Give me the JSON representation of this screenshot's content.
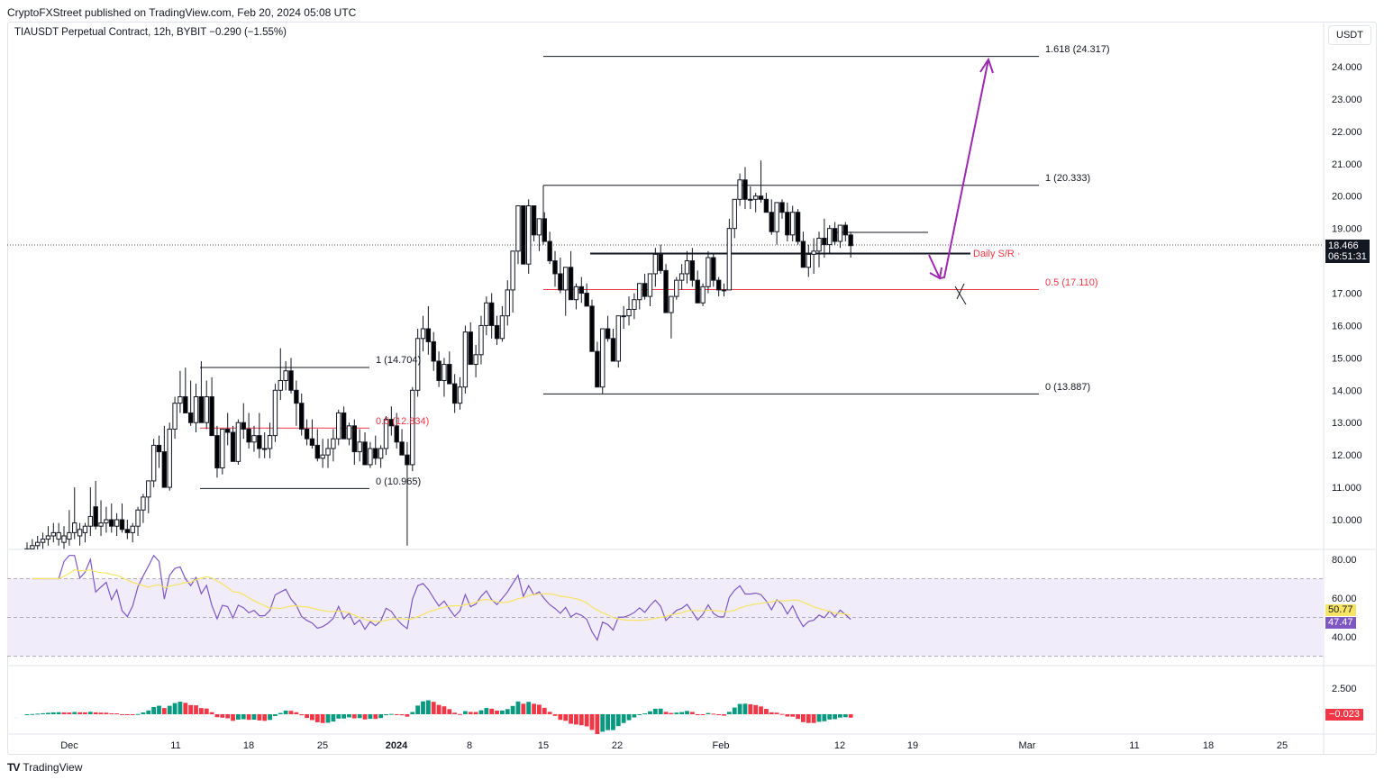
{
  "header": {
    "published": "CryptoFXStreet published on TradingView.com, Feb 20, 2024 05:08 UTC",
    "symbol_line": "TIAUSDT Perpetual Contract, 12h, BYBIT  −0.290 (−1.55%)",
    "currency": "USDT"
  },
  "price_axis": {
    "ticks": [
      "24.000",
      "23.000",
      "22.000",
      "21.000",
      "20.000",
      "19.000",
      "17.000",
      "16.000",
      "15.000",
      "14.000",
      "13.000",
      "12.000",
      "11.000",
      "10.000"
    ],
    "last_price": "18.466",
    "countdown": "06:51:31"
  },
  "rsi_axis": {
    "ticks": [
      "80.00",
      "60.00",
      "40.00"
    ],
    "rsi_value": "47.47",
    "ma_value": "50.77"
  },
  "macd_axis": {
    "ticks": [
      "2.500"
    ],
    "value": "−0.023"
  },
  "time_axis": {
    "labels": [
      "Dec",
      "11",
      "18",
      "25",
      "2024",
      "8",
      "15",
      "22",
      "Feb",
      "12",
      "19",
      "Mar",
      "11",
      "18",
      "25"
    ]
  },
  "annotations": {
    "fib_small": {
      "l1": "1 (14.704)",
      "l05": "0.5 (12.834)",
      "l0": "0 (10.965)"
    },
    "fib_big": {
      "l1618": "1.618 (24.317)",
      "l1": "1 (20.333)",
      "l05": "0.5 (17.110)",
      "l0": "0 (13.887)"
    },
    "sr_label": "Daily S/R"
  },
  "footer": {
    "brand": "TradingView"
  },
  "colors": {
    "up_fill": "#ffffff",
    "down_fill": "#000000",
    "fib_red": "#f23645",
    "arrow": "#9c27b0",
    "rsi_line": "#7e57c2",
    "rsi_ma": "#f7e463",
    "rsi_band": "#f0ecf9",
    "macd_up": "#089981",
    "macd_down": "#f23645"
  },
  "chart_data": {
    "type": "candlestick",
    "title": "TIAUSDT Perpetual Contract, 12h, BYBIT",
    "ylabel": "USDT",
    "ylim": [
      9.3,
      25.0
    ],
    "x_start": "2023-11-26",
    "interval": "12h",
    "ohlc": [
      [
        9.0,
        9.3,
        8.8,
        9.1
      ],
      [
        9.1,
        9.4,
        8.9,
        9.2
      ],
      [
        9.2,
        9.5,
        9.0,
        9.3
      ],
      [
        9.3,
        9.6,
        9.1,
        9.4
      ],
      [
        9.4,
        9.8,
        9.2,
        9.5
      ],
      [
        9.5,
        9.9,
        9.3,
        9.6
      ],
      [
        9.4,
        9.9,
        9.2,
        9.6
      ],
      [
        9.3,
        9.8,
        9.1,
        9.5
      ],
      [
        9.4,
        10.3,
        9.2,
        9.6
      ],
      [
        9.6,
        11.0,
        9.4,
        9.9
      ],
      [
        9.5,
        9.9,
        9.2,
        9.7
      ],
      [
        9.6,
        9.9,
        9.3,
        9.8
      ],
      [
        9.8,
        11.0,
        9.5,
        10.1
      ],
      [
        10.4,
        11.2,
        9.7,
        9.8
      ],
      [
        9.8,
        10.6,
        9.5,
        9.9
      ],
      [
        9.9,
        10.4,
        9.6,
        10.0
      ],
      [
        10.0,
        10.5,
        9.6,
        9.8
      ],
      [
        9.8,
        10.2,
        9.5,
        10.0
      ],
      [
        10.0,
        10.5,
        9.6,
        9.7
      ],
      [
        9.7,
        10.0,
        9.4,
        9.6
      ],
      [
        9.6,
        9.9,
        9.3,
        9.8
      ],
      [
        9.8,
        10.4,
        9.5,
        10.3
      ],
      [
        10.3,
        10.8,
        9.9,
        10.7
      ],
      [
        10.7,
        11.2,
        10.2,
        11.2
      ],
      [
        11.2,
        12.5,
        11.0,
        12.3
      ],
      [
        12.3,
        12.6,
        11.6,
        12.1
      ],
      [
        12.1,
        12.9,
        11.0,
        11.0
      ],
      [
        11.0,
        13.0,
        10.9,
        12.8
      ],
      [
        12.8,
        13.8,
        12.5,
        13.6
      ],
      [
        13.6,
        14.6,
        13.3,
        13.8
      ],
      [
        13.8,
        14.7,
        13.4,
        13.3
      ],
      [
        13.3,
        14.3,
        12.9,
        13.0
      ],
      [
        13.0,
        14.2,
        12.7,
        13.8
      ],
      [
        13.8,
        14.9,
        13.0,
        13.0
      ],
      [
        13.0,
        14.3,
        12.8,
        13.8
      ],
      [
        13.8,
        14.4,
        12.6,
        12.6
      ],
      [
        12.6,
        12.9,
        11.3,
        11.6
      ],
      [
        11.6,
        12.8,
        11.4,
        12.8
      ],
      [
        12.8,
        13.3,
        12.3,
        12.7
      ],
      [
        12.7,
        12.9,
        11.8,
        11.8
      ],
      [
        11.8,
        13.1,
        11.7,
        13.0
      ],
      [
        13.0,
        13.6,
        12.5,
        12.8
      ],
      [
        12.8,
        13.3,
        12.2,
        12.4
      ],
      [
        12.4,
        12.9,
        12.1,
        12.6
      ],
      [
        12.6,
        13.3,
        11.9,
        12.2
      ],
      [
        12.2,
        12.7,
        11.9,
        12.2
      ],
      [
        12.2,
        13.0,
        11.9,
        12.6
      ],
      [
        12.6,
        14.2,
        12.4,
        14.0
      ],
      [
        14.0,
        15.3,
        13.7,
        14.3
      ],
      [
        14.3,
        14.9,
        14.0,
        14.6
      ],
      [
        14.6,
        15.0,
        13.9,
        14.0
      ],
      [
        14.0,
        14.3,
        12.9,
        13.6
      ],
      [
        13.6,
        13.9,
        12.6,
        12.8
      ],
      [
        12.8,
        13.1,
        12.3,
        12.5
      ],
      [
        12.5,
        13.1,
        12.2,
        12.3
      ],
      [
        12.3,
        12.8,
        11.8,
        11.9
      ],
      [
        11.9,
        12.5,
        11.6,
        12.0
      ],
      [
        12.0,
        12.5,
        11.6,
        12.2
      ],
      [
        12.2,
        12.8,
        11.8,
        12.5
      ],
      [
        12.5,
        13.4,
        12.3,
        13.3
      ],
      [
        13.3,
        13.5,
        12.7,
        12.5
      ],
      [
        12.5,
        13.0,
        12.3,
        12.9
      ],
      [
        12.9,
        13.1,
        11.7,
        12.1
      ],
      [
        12.1,
        12.8,
        11.8,
        12.4
      ],
      [
        12.4,
        12.7,
        11.7,
        11.7
      ],
      [
        11.7,
        12.4,
        11.6,
        12.2
      ],
      [
        12.2,
        12.6,
        11.7,
        11.9
      ],
      [
        11.9,
        12.3,
        11.6,
        12.2
      ],
      [
        12.2,
        13.2,
        12.0,
        13.1
      ],
      [
        13.1,
        13.5,
        12.6,
        12.9
      ],
      [
        12.9,
        13.3,
        12.2,
        12.4
      ],
      [
        12.4,
        12.8,
        12.0,
        12.0
      ],
      [
        12.0,
        12.4,
        9.2,
        11.7
      ],
      [
        11.7,
        14.1,
        11.5,
        14.0
      ],
      [
        14.0,
        15.9,
        13.8,
        15.6
      ],
      [
        15.6,
        16.3,
        15.2,
        15.9
      ],
      [
        15.9,
        16.6,
        15.1,
        15.5
      ],
      [
        15.5,
        15.8,
        14.6,
        14.9
      ],
      [
        14.9,
        15.2,
        14.1,
        14.3
      ],
      [
        14.3,
        15.0,
        13.8,
        14.8
      ],
      [
        14.8,
        15.2,
        14.2,
        14.2
      ],
      [
        14.2,
        14.5,
        13.3,
        13.6
      ],
      [
        13.6,
        14.4,
        13.4,
        14.1
      ],
      [
        14.1,
        16.0,
        13.9,
        15.8
      ],
      [
        15.8,
        16.1,
        14.9,
        14.8
      ],
      [
        14.8,
        15.4,
        14.4,
        15.1
      ],
      [
        15.1,
        16.3,
        14.8,
        16.0
      ],
      [
        16.0,
        16.9,
        15.7,
        16.7
      ],
      [
        16.7,
        17.0,
        15.6,
        16.0
      ],
      [
        16.0,
        16.3,
        15.4,
        15.6
      ],
      [
        15.6,
        16.6,
        15.5,
        16.3
      ],
      [
        16.3,
        17.4,
        16.0,
        17.1
      ],
      [
        17.1,
        18.3,
        16.4,
        18.3
      ],
      [
        18.3,
        19.7,
        17.9,
        19.7
      ],
      [
        19.7,
        19.7,
        17.9,
        17.9
      ],
      [
        17.9,
        19.9,
        17.6,
        19.7
      ],
      [
        19.7,
        19.5,
        18.6,
        18.8
      ],
      [
        18.8,
        19.1,
        18.3,
        19.3
      ],
      [
        19.3,
        19.5,
        18.6,
        18.6
      ],
      [
        18.6,
        18.9,
        17.9,
        18.0
      ],
      [
        18.0,
        18.3,
        17.2,
        17.6
      ],
      [
        17.6,
        18.1,
        17.0,
        17.1
      ],
      [
        17.1,
        17.4,
        16.3,
        17.8
      ],
      [
        17.8,
        18.3,
        17.0,
        16.8
      ],
      [
        16.8,
        17.3,
        16.5,
        17.2
      ],
      [
        17.2,
        17.5,
        16.7,
        17.0
      ],
      [
        17.0,
        17.3,
        16.6,
        16.6
      ],
      [
        16.6,
        16.8,
        15.3,
        15.2
      ],
      [
        15.2,
        15.5,
        14.2,
        14.1
      ],
      [
        14.1,
        15.9,
        13.9,
        15.9
      ],
      [
        15.9,
        16.3,
        15.5,
        15.6
      ],
      [
        15.6,
        15.9,
        15.1,
        14.9
      ],
      [
        14.9,
        16.3,
        14.7,
        16.3
      ],
      [
        16.3,
        16.6,
        15.9,
        16.3
      ],
      [
        16.3,
        16.9,
        16.0,
        16.5
      ],
      [
        16.5,
        17.0,
        16.2,
        16.8
      ],
      [
        16.8,
        17.2,
        16.5,
        17.3
      ],
      [
        17.3,
        17.6,
        16.8,
        16.9
      ],
      [
        16.9,
        17.4,
        16.6,
        17.6
      ],
      [
        17.6,
        18.4,
        17.2,
        18.2
      ],
      [
        18.2,
        18.5,
        17.6,
        17.7
      ],
      [
        17.7,
        17.9,
        16.4,
        16.4
      ],
      [
        16.4,
        16.9,
        15.6,
        16.9
      ],
      [
        16.9,
        17.5,
        16.8,
        17.4
      ],
      [
        17.4,
        17.9,
        17.1,
        17.6
      ],
      [
        17.6,
        18.3,
        17.3,
        18.0
      ],
      [
        18.0,
        18.4,
        17.2,
        17.4
      ],
      [
        17.4,
        17.7,
        16.7,
        16.7
      ],
      [
        16.7,
        17.3,
        16.6,
        17.2
      ],
      [
        17.2,
        18.3,
        17.0,
        18.1
      ],
      [
        18.1,
        18.2,
        17.2,
        17.4
      ],
      [
        17.4,
        17.5,
        16.9,
        17.1
      ],
      [
        17.1,
        17.3,
        16.9,
        17.1
      ],
      [
        17.1,
        19.3,
        17.1,
        19.0
      ],
      [
        19.0,
        19.7,
        18.7,
        19.9
      ],
      [
        19.9,
        20.7,
        19.7,
        20.5
      ],
      [
        20.5,
        20.9,
        19.6,
        19.9
      ],
      [
        19.9,
        20.3,
        19.6,
        19.9
      ],
      [
        19.9,
        20.1,
        19.5,
        20.0
      ],
      [
        20.0,
        21.1,
        19.8,
        19.9
      ],
      [
        19.9,
        20.1,
        19.5,
        19.5
      ],
      [
        19.5,
        19.9,
        18.8,
        18.9
      ],
      [
        18.9,
        19.6,
        18.5,
        19.8
      ],
      [
        19.8,
        19.9,
        19.3,
        19.5
      ],
      [
        19.5,
        19.8,
        18.6,
        18.8
      ],
      [
        18.8,
        19.7,
        18.6,
        19.5
      ],
      [
        19.5,
        19.6,
        18.5,
        18.6
      ],
      [
        18.6,
        18.9,
        17.9,
        17.8
      ],
      [
        17.8,
        18.5,
        17.5,
        18.2
      ],
      [
        18.2,
        18.7,
        17.6,
        18.3
      ],
      [
        18.3,
        18.9,
        17.8,
        18.7
      ],
      [
        18.7,
        19.3,
        18.1,
        18.5
      ],
      [
        18.5,
        19.1,
        18.2,
        19.0
      ],
      [
        19.0,
        19.2,
        18.5,
        18.6
      ],
      [
        18.6,
        19.1,
        18.4,
        19.1
      ],
      [
        19.1,
        19.2,
        18.6,
        18.8
      ],
      [
        18.8,
        18.9,
        18.1,
        18.47
      ]
    ],
    "levels": [
      {
        "label": "1.618",
        "value": 24.317
      },
      {
        "label": "1",
        "value": 20.333
      },
      {
        "label": "0.5",
        "value": 17.11
      },
      {
        "label": "0",
        "value": 13.887
      },
      {
        "label": "1 (small)",
        "value": 14.704
      },
      {
        "label": "0.5 (small)",
        "value": 12.834
      },
      {
        "label": "0 (small)",
        "value": 10.965
      },
      {
        "label": "Daily S/R",
        "value": 18.1
      }
    ],
    "rsi": {
      "ylim": [
        20,
        90
      ],
      "bands": [
        30,
        70
      ],
      "mid": 50,
      "last": 47.47,
      "ma_last": 50.77
    },
    "macd_hist": {
      "last": -0.023
    }
  }
}
